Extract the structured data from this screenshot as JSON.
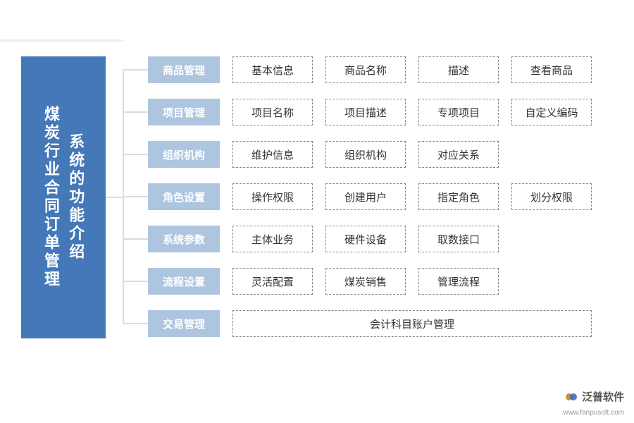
{
  "root": {
    "title_line1": "系统的功能介绍",
    "title_line2": "煤炭行业合同订单管理",
    "bg_color": "#4478b8",
    "text_color": "#ffffff"
  },
  "categories": [
    {
      "label": "商品管理",
      "items": [
        "基本信息",
        "商品名称",
        "描述",
        "查看商品"
      ]
    },
    {
      "label": "项目管理",
      "items": [
        "项目名称",
        "项目描述",
        "专项项目",
        "自定义编码"
      ]
    },
    {
      "label": "组织机构",
      "items": [
        "维护信息",
        "组织机构",
        "对应关系"
      ]
    },
    {
      "label": "角色设置",
      "items": [
        "操作权限",
        "创建用户",
        "指定角色",
        "划分权限"
      ]
    },
    {
      "label": "系统参数",
      "items": [
        "主体业务",
        "硬件设备",
        "取数接口"
      ]
    },
    {
      "label": "流程设置",
      "items": [
        "灵活配置",
        "煤炭销售",
        "管理流程"
      ]
    },
    {
      "label": "交易管理",
      "items_wide": "会计科目账户管理"
    }
  ],
  "category_bg": "#aec5df",
  "item_border": "#888888",
  "connector_color": "#d8dde2",
  "logo": {
    "main": "泛普软件",
    "sub": "www.fanpusoft.com"
  }
}
